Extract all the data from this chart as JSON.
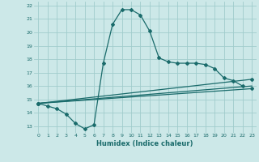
{
  "xlabel": "Humidex (Indice chaleur)",
  "xlim": [
    -0.5,
    23.5
  ],
  "ylim": [
    12.5,
    22.3
  ],
  "xtick_vals": [
    0,
    1,
    2,
    3,
    4,
    5,
    6,
    7,
    8,
    9,
    10,
    11,
    12,
    13,
    14,
    15,
    16,
    17,
    18,
    19,
    20,
    21,
    22,
    23
  ],
  "ytick_vals": [
    13,
    14,
    15,
    16,
    17,
    18,
    19,
    20,
    21,
    22
  ],
  "bg_color": "#cce8e8",
  "grid_color": "#a0cccc",
  "line_color": "#1a6b6b",
  "zigzag_x": [
    0,
    1,
    2,
    3,
    4,
    5,
    6,
    7,
    8,
    9,
    10,
    11,
    12,
    13,
    14,
    15,
    16,
    17,
    18,
    19,
    20,
    21,
    22
  ],
  "zigzag_y": [
    14.7,
    14.5,
    14.3,
    13.9,
    13.2,
    12.8,
    13.1,
    17.7,
    20.6,
    21.7,
    21.7,
    21.3,
    20.1,
    18.1,
    17.8,
    17.7,
    17.7,
    17.7,
    17.6,
    17.3,
    16.6,
    16.4,
    16.0
  ],
  "trend1_x": [
    0,
    23
  ],
  "trend1_y": [
    14.7,
    16.5
  ],
  "trend2_x": [
    0,
    23
  ],
  "trend2_y": [
    14.7,
    15.8
  ],
  "trend3_x": [
    0,
    23
  ],
  "trend3_y": [
    14.7,
    16.0
  ]
}
